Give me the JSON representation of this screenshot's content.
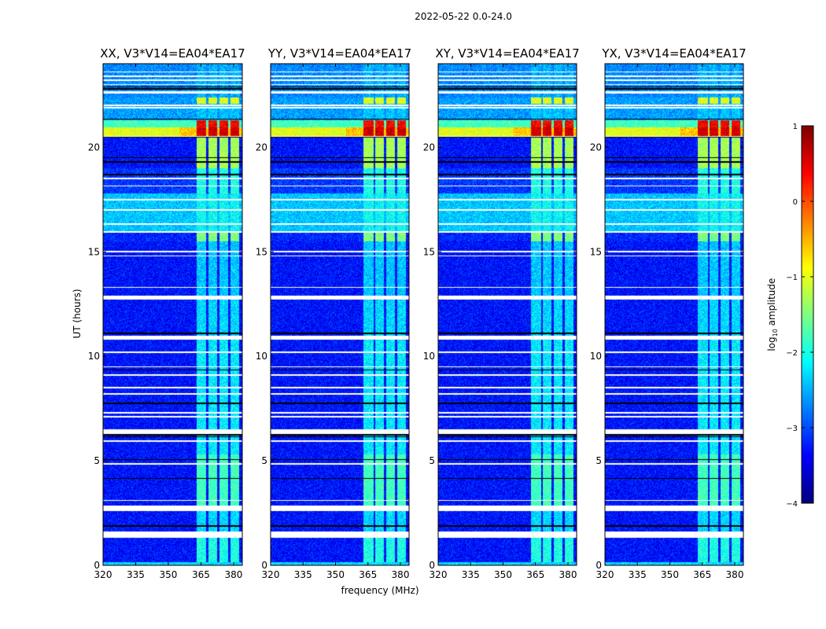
{
  "chart_data": {
    "type": "heatmap",
    "title": "2022-05-22 0.0-24.0",
    "xlabel": "frequency (MHz)",
    "ylabel": "UT (hours)",
    "xlim": [
      320,
      384
    ],
    "ylim": [
      0,
      24
    ],
    "xticks": [
      "320",
      "335",
      "350",
      "365",
      "380"
    ],
    "yticks": [
      "0",
      "5",
      "10",
      "15",
      "20"
    ],
    "panels": [
      {
        "title": "XX, V3*V14=EA04*EA17"
      },
      {
        "title": "YY, V3*V14=EA04*EA17"
      },
      {
        "title": "XY, V3*V14=EA04*EA17"
      },
      {
        "title": "YX, V3*V14=EA04*EA17"
      }
    ],
    "colorbar": {
      "label_prefix": "log",
      "label_sub": "10",
      "label_suffix": " amplitude",
      "range": [
        -4,
        1
      ],
      "ticks": [
        "1",
        "0",
        "−1",
        "−2",
        "−3",
        "−4"
      ],
      "colormap": "jet"
    },
    "rfi_channels_mhz": [
      [
        363,
        367.5
      ],
      [
        368.5,
        372.5
      ],
      [
        373.5,
        377.5
      ],
      [
        378.5,
        382.5
      ]
    ],
    "segments_hours": [
      {
        "t": [
          0,
          0.15
        ],
        "base": -2.3,
        "rfi": -2.3
      },
      {
        "t": [
          0.15,
          1.3
        ],
        "base": -3.3,
        "rfi": -2.0
      },
      {
        "t": [
          1.6,
          2.6
        ],
        "base": -3.3,
        "rfi": -2.3
      },
      {
        "t": [
          2.85,
          5.3
        ],
        "base": -3.3,
        "rfi": -1.8
      },
      {
        "t": [
          5.3,
          6.3
        ],
        "base": -3.3,
        "rfi": -2.2
      },
      {
        "t": [
          6.5,
          10.8
        ],
        "base": -3.3,
        "rfi": -2.2
      },
      {
        "t": [
          11.0,
          12.7
        ],
        "base": -3.3,
        "rfi": -2.3
      },
      {
        "t": [
          12.9,
          15.5
        ],
        "base": -3.3,
        "rfi": -2.4
      },
      {
        "t": [
          15.5,
          15.9
        ],
        "base": -3.2,
        "rfi": -1.5
      },
      {
        "t": [
          16.0,
          17.8
        ],
        "base": -2.4,
        "rfi": -2.1
      },
      {
        "t": [
          17.8,
          19.0
        ],
        "base": -3.1,
        "rfi": -2.0
      },
      {
        "t": [
          19.0,
          20.5
        ],
        "base": -3.3,
        "rfi": -1.3
      },
      {
        "t": [
          20.55,
          20.95
        ],
        "base": -1.0,
        "rfi": 0.6
      },
      {
        "t": [
          20.95,
          21.3
        ],
        "base": -1.8,
        "rfi": 0.4
      },
      {
        "t": [
          21.3,
          22.1
        ],
        "base": -2.6,
        "rfi": -2.4
      },
      {
        "t": [
          22.1,
          22.4
        ],
        "base": -2.6,
        "rfi": -1.0
      },
      {
        "t": [
          22.4,
          24.0
        ],
        "base": -2.7,
        "rfi": -2.5
      }
    ],
    "flagged_hours": [
      1.4,
      1.5,
      2.7,
      2.75,
      3.1,
      4.85,
      5.95,
      7.1,
      7.3,
      8.2,
      8.5,
      9.1,
      9.5,
      10.2,
      10.85,
      10.9,
      12.75,
      12.8,
      13.3,
      14.8,
      15.0,
      16.3,
      16.35,
      17.0,
      17.5,
      18.15,
      18.5,
      21.9,
      22.0,
      22.6,
      22.65,
      23.0,
      23.2,
      23.4,
      23.6
    ],
    "blank_hours": [
      1.85,
      1.9,
      4.15,
      5.05,
      6.15,
      6.25,
      6.4,
      7.75,
      9.35,
      11.1,
      18.7,
      19.3,
      19.5,
      20.5,
      21.35,
      22.8,
      22.9
    ]
  }
}
